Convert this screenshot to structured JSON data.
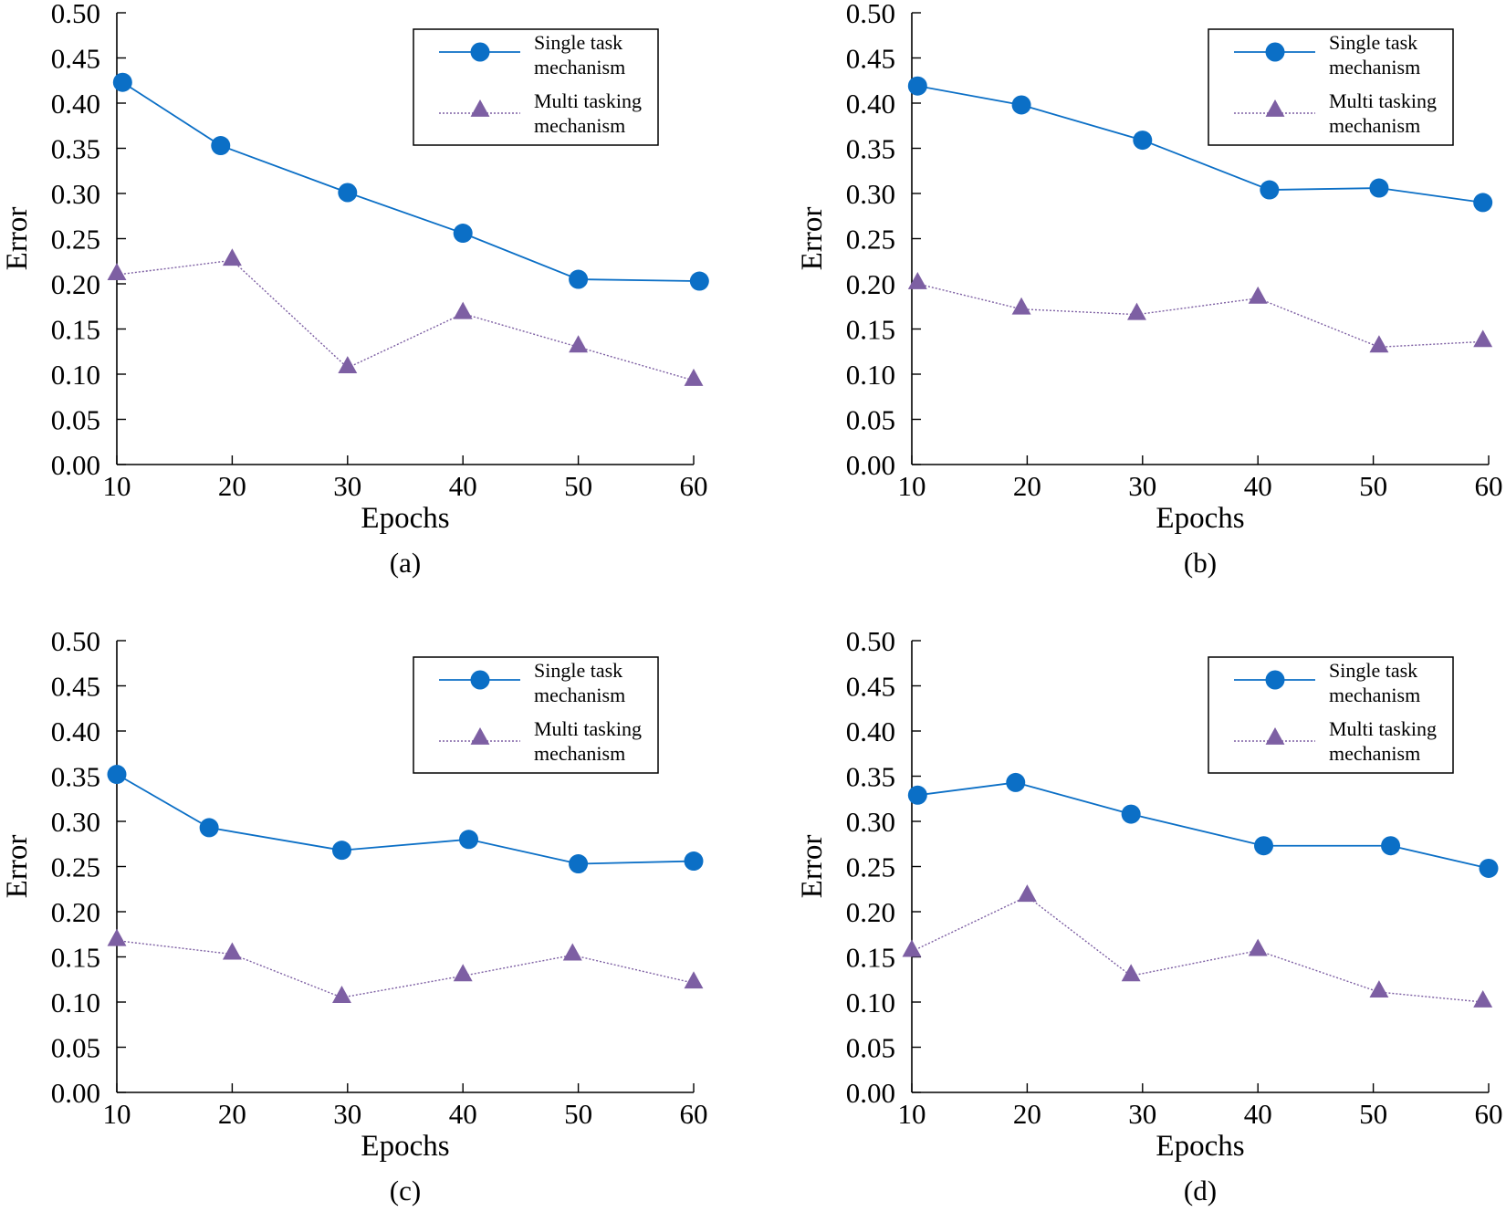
{
  "colors": {
    "single": "#0b6fc6",
    "multi": "#7d5fa3"
  },
  "legend": {
    "single": [
      "Single task",
      "mechanism"
    ],
    "multi": [
      "Multi tasking",
      "mechanism"
    ]
  },
  "chart_data": [
    {
      "type": "line",
      "caption": "(a)",
      "xlabel": "Epochs",
      "ylabel": "Error",
      "xlim": [
        10,
        60
      ],
      "ylim": [
        0,
        0.5
      ],
      "xticks": [
        "10",
        "20",
        "30",
        "40",
        "50",
        "60"
      ],
      "yticks": [
        "0.00",
        "0.05",
        "0.10",
        "0.15",
        "0.20",
        "0.25",
        "0.30",
        "0.35",
        "0.40",
        "0.45",
        "0.50"
      ],
      "legend_position": "top-right",
      "series": [
        {
          "name": "Single task mechanism",
          "marker": "circle",
          "points": [
            [
              10.5,
              0.423
            ],
            [
              19,
              0.353
            ],
            [
              30,
              0.301
            ],
            [
              40,
              0.256
            ],
            [
              50,
              0.205
            ],
            [
              60.5,
              0.203
            ]
          ]
        },
        {
          "name": "Multi tasking mechanism",
          "marker": "triangle",
          "points": [
            [
              10,
              0.21
            ],
            [
              20,
              0.226
            ],
            [
              30,
              0.107
            ],
            [
              40,
              0.167
            ],
            [
              50,
              0.13
            ],
            [
              60,
              0.093
            ]
          ]
        }
      ]
    },
    {
      "type": "line",
      "caption": "(b)",
      "xlabel": "Epochs",
      "ylabel": "Error",
      "xlim": [
        10,
        60
      ],
      "ylim": [
        0,
        0.5
      ],
      "xticks": [
        "10",
        "20",
        "30",
        "40",
        "50",
        "60"
      ],
      "yticks": [
        "0.00",
        "0.05",
        "0.10",
        "0.15",
        "0.20",
        "0.25",
        "0.30",
        "0.35",
        "0.40",
        "0.45",
        "0.50"
      ],
      "legend_position": "top-right",
      "series": [
        {
          "name": "Single task mechanism",
          "marker": "circle",
          "points": [
            [
              10.5,
              0.419
            ],
            [
              19.5,
              0.398
            ],
            [
              30,
              0.359
            ],
            [
              41,
              0.304
            ],
            [
              50.5,
              0.306
            ],
            [
              59.5,
              0.29
            ]
          ]
        },
        {
          "name": "Multi tasking mechanism",
          "marker": "triangle",
          "points": [
            [
              10.5,
              0.2
            ],
            [
              19.5,
              0.172
            ],
            [
              29.5,
              0.166
            ],
            [
              40,
              0.184
            ],
            [
              50.5,
              0.13
            ],
            [
              59.5,
              0.136
            ]
          ]
        }
      ]
    },
    {
      "type": "line",
      "caption": "(c)",
      "xlabel": "Epochs",
      "ylabel": "Error",
      "xlim": [
        10,
        60
      ],
      "ylim": [
        0,
        0.5
      ],
      "xticks": [
        "10",
        "20",
        "30",
        "40",
        "50",
        "60"
      ],
      "yticks": [
        "0.00",
        "0.05",
        "0.10",
        "0.15",
        "0.20",
        "0.25",
        "0.30",
        "0.35",
        "0.40",
        "0.45",
        "0.50"
      ],
      "legend_position": "top-right",
      "series": [
        {
          "name": "Single task mechanism",
          "marker": "circle",
          "points": [
            [
              10,
              0.352
            ],
            [
              18,
              0.293
            ],
            [
              29.5,
              0.268
            ],
            [
              40.5,
              0.28
            ],
            [
              50,
              0.253
            ],
            [
              60,
              0.256
            ]
          ]
        },
        {
          "name": "Multi tasking mechanism",
          "marker": "triangle",
          "points": [
            [
              10,
              0.168
            ],
            [
              20,
              0.153
            ],
            [
              29.5,
              0.105
            ],
            [
              40,
              0.129
            ],
            [
              49.5,
              0.152
            ],
            [
              60,
              0.121
            ]
          ]
        }
      ]
    },
    {
      "type": "line",
      "caption": "(d)",
      "xlabel": "Epochs",
      "ylabel": "Error",
      "xlim": [
        10,
        60
      ],
      "ylim": [
        0,
        0.5
      ],
      "xticks": [
        "10",
        "20",
        "30",
        "40",
        "50",
        "60"
      ],
      "yticks": [
        "0.00",
        "0.05",
        "0.10",
        "0.15",
        "0.20",
        "0.25",
        "0.30",
        "0.35",
        "0.40",
        "0.45",
        "0.50"
      ],
      "legend_position": "top-right",
      "series": [
        {
          "name": "Single task mechanism",
          "marker": "circle",
          "points": [
            [
              10.5,
              0.329
            ],
            [
              19,
              0.343
            ],
            [
              29,
              0.308
            ],
            [
              40.5,
              0.273
            ],
            [
              51.5,
              0.273
            ],
            [
              60,
              0.248
            ]
          ]
        },
        {
          "name": "Multi tasking mechanism",
          "marker": "triangle",
          "points": [
            [
              10,
              0.156
            ],
            [
              20,
              0.217
            ],
            [
              29,
              0.129
            ],
            [
              40,
              0.157
            ],
            [
              50.5,
              0.111
            ],
            [
              59.5,
              0.1
            ]
          ]
        }
      ]
    }
  ]
}
